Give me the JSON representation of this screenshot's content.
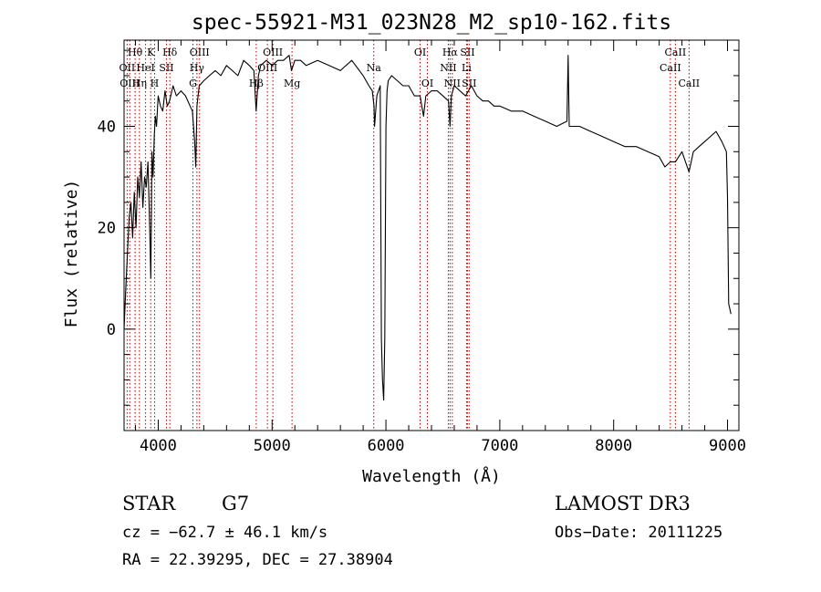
{
  "chart_data": {
    "type": "line",
    "title": "spec-55921-M31_023N28_M2_sp10-162.fits",
    "xlabel": "Wavelength (Å)",
    "ylabel": "Flux (relative)",
    "xlim": [
      3700,
      9100
    ],
    "ylim": [
      -20,
      57
    ],
    "xticks": [
      {
        "value": 4000,
        "label": "4000"
      },
      {
        "value": 5000,
        "label": "5000"
      },
      {
        "value": 6000,
        "label": "6000"
      },
      {
        "value": 7000,
        "label": "7000"
      },
      {
        "value": 8000,
        "label": "8000"
      },
      {
        "value": 9000,
        "label": "9000"
      }
    ],
    "yticks": [
      {
        "value": 0,
        "label": "0"
      },
      {
        "value": 20,
        "label": "20"
      },
      {
        "value": 40,
        "label": "40"
      }
    ],
    "series": [
      {
        "name": "spectrum",
        "x": [
          3700,
          3715,
          3730,
          3745,
          3760,
          3775,
          3790,
          3805,
          3820,
          3835,
          3850,
          3865,
          3880,
          3895,
          3910,
          3925,
          3935,
          3945,
          3955,
          3965,
          3975,
          3985,
          4000,
          4020,
          4040,
          4060,
          4080,
          4100,
          4130,
          4160,
          4200,
          4240,
          4280,
          4300,
          4320,
          4330,
          4340,
          4360,
          4400,
          4450,
          4500,
          4550,
          4600,
          4650,
          4700,
          4750,
          4800,
          4840,
          4860,
          4880,
          4900,
          4950,
          5000,
          5050,
          5100,
          5150,
          5170,
          5200,
          5250,
          5300,
          5400,
          5500,
          5600,
          5700,
          5800,
          5850,
          5880,
          5895,
          5900,
          5920,
          5950,
          5960,
          5970,
          5980,
          5990,
          6000,
          6010,
          6020,
          6050,
          6100,
          6150,
          6200,
          6250,
          6300,
          6330,
          6350,
          6400,
          6450,
          6500,
          6550,
          6563,
          6575,
          6600,
          6650,
          6700,
          6750,
          6800,
          6850,
          6900,
          6950,
          7000,
          7100,
          7200,
          7300,
          7400,
          7500,
          7590,
          7600,
          7610,
          7650,
          7700,
          7800,
          7900,
          8000,
          8100,
          8200,
          8300,
          8400,
          8450,
          8498,
          8542,
          8600,
          8662,
          8700,
          8750,
          8800,
          8850,
          8900,
          8950,
          8990,
          9000,
          9010,
          9030
        ],
        "y": [
          0,
          8,
          15,
          22,
          25,
          18,
          27,
          20,
          30,
          26,
          33,
          24,
          30,
          28,
          33,
          20,
          10,
          35,
          30,
          38,
          42,
          40,
          46,
          44,
          43,
          47,
          44,
          45,
          48,
          46,
          47,
          46,
          44,
          43,
          37,
          32,
          44,
          48,
          49,
          50,
          51,
          50,
          52,
          51,
          50,
          53,
          52,
          51,
          43,
          50,
          52,
          53,
          52,
          53,
          53,
          54,
          51,
          53,
          53,
          52,
          53,
          52,
          51,
          53,
          50,
          48,
          47,
          44,
          40,
          46,
          48,
          -2,
          -10,
          -14,
          -2,
          40,
          47,
          49,
          50,
          49,
          48,
          48,
          46,
          46,
          42,
          46,
          47,
          47,
          46,
          45,
          40,
          46,
          48,
          47,
          46,
          48,
          46,
          45,
          45,
          44,
          44,
          43,
          43,
          42,
          41,
          40,
          41,
          54,
          40,
          40,
          40,
          39,
          38,
          37,
          36,
          36,
          35,
          34,
          32,
          33,
          33,
          35,
          31,
          35,
          36,
          37,
          38,
          39,
          37,
          35,
          26,
          5,
          3
        ]
      }
    ],
    "line_ids": [
      {
        "label": "Hθ",
        "wavelength": 3797,
        "row": 0
      },
      {
        "label": "OII",
        "wavelength": 3727,
        "row": 1
      },
      {
        "label": "OIII",
        "wavelength": 3750,
        "row": 2
      },
      {
        "label": "K",
        "wavelength": 3934,
        "row": 0
      },
      {
        "label": "HeI",
        "wavelength": 3889,
        "row": 1
      },
      {
        "label": "Hη",
        "wavelength": 3835,
        "row": 2
      },
      {
        "label": "Hδ",
        "wavelength": 4102,
        "row": 0
      },
      {
        "label": "SII",
        "wavelength": 4072,
        "row": 1
      },
      {
        "label": "H",
        "wavelength": 3968,
        "row": 2
      },
      {
        "label": "OIII",
        "wavelength": 4363,
        "row": 0
      },
      {
        "label": "Hγ",
        "wavelength": 4340,
        "row": 1
      },
      {
        "label": "G",
        "wavelength": 4305,
        "row": 2
      },
      {
        "label": "OIII",
        "wavelength": 5007,
        "row": 0
      },
      {
        "label": "OIII",
        "wavelength": 4959,
        "row": 1
      },
      {
        "label": "Hβ",
        "wavelength": 4861,
        "row": 2
      },
      {
        "label": "Mg",
        "wavelength": 5175,
        "row": 2
      },
      {
        "label": "Na",
        "wavelength": 5893,
        "row": 1
      },
      {
        "label": "OI",
        "wavelength": 6300,
        "row": 0
      },
      {
        "label": "OI",
        "wavelength": 6364,
        "row": 2
      },
      {
        "label": "Hα",
        "wavelength": 6563,
        "row": 0
      },
      {
        "label": "NII",
        "wavelength": 6548,
        "row": 1
      },
      {
        "label": "NII",
        "wavelength": 6583,
        "row": 2
      },
      {
        "label": "SII",
        "wavelength": 6716,
        "row": 0
      },
      {
        "label": "Li",
        "wavelength": 6708,
        "row": 1
      },
      {
        "label": "SII",
        "wavelength": 6731,
        "row": 2
      },
      {
        "label": "CaII",
        "wavelength": 8542,
        "row": 0
      },
      {
        "label": "CaII",
        "wavelength": 8498,
        "row": 1
      },
      {
        "label": "CaII",
        "wavelength": 8662,
        "row": 2
      }
    ],
    "colors": {
      "spectrum": "#000000",
      "line_ids": "#b00000"
    }
  },
  "info": {
    "class": "STAR",
    "subclass": "G7",
    "survey": "LAMOST DR3",
    "cz": "cz = −62.7 ± 46.1 km/s",
    "obs_date": "Obs−Date: 20111225",
    "coords": "RA =  22.39295, DEC =  27.38904"
  }
}
